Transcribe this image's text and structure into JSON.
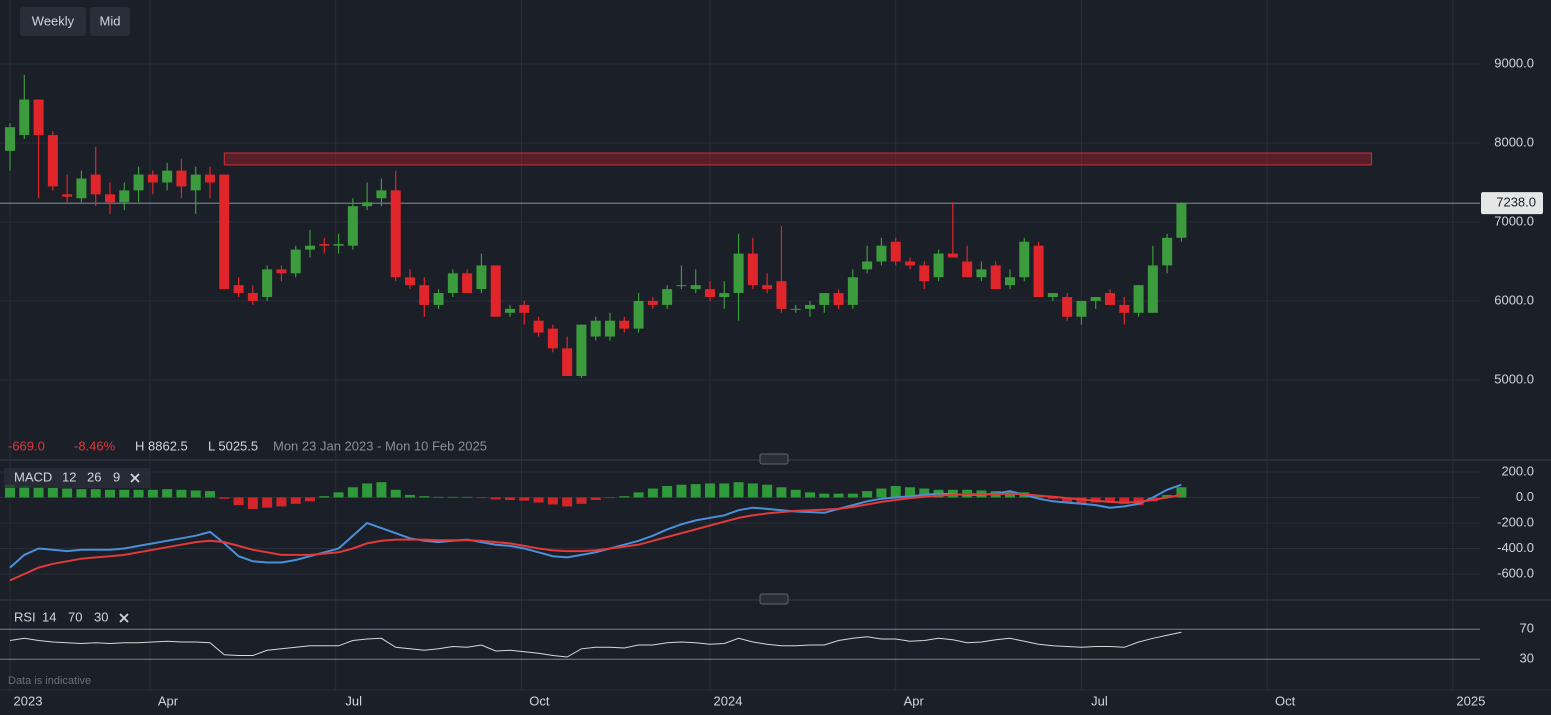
{
  "toolbar": [
    "Weekly",
    "Mid"
  ],
  "footer": "Data is indicative",
  "stats": {
    "change": "-669.0",
    "change_pct": "-8.46%",
    "high": "H 8862.5",
    "low": "L 5025.5",
    "range": "Mon 23 Jan 2023 - Mon 10 Feb 2025"
  },
  "chart_data": [
    {
      "type": "candlestick",
      "up_color": "#3c9b3c",
      "down_color": "#e0262b",
      "grid": true,
      "xlim": [
        -0.7,
        102.9
      ],
      "xticks": [
        {
          "value": 0,
          "label": "2023"
        },
        {
          "value": 9.8,
          "label": "Apr"
        },
        {
          "value": 22.8,
          "label": "Jul"
        },
        {
          "value": 35.8,
          "label": "Oct"
        },
        {
          "value": 49,
          "label": "2024"
        },
        {
          "value": 62,
          "label": "Apr"
        },
        {
          "value": 75,
          "label": "Jul"
        },
        {
          "value": 88,
          "label": "Oct"
        },
        {
          "value": 101,
          "label": "2025"
        }
      ],
      "ylim": [
        4050,
        9810
      ],
      "yticks": [
        {
          "value": 5000,
          "label": "5000.0"
        },
        {
          "value": 6000,
          "label": "6000.0"
        },
        {
          "value": 7000,
          "label": "7000.0"
        },
        {
          "value": 8000,
          "label": "8000.0"
        },
        {
          "value": 9000,
          "label": "9000.0"
        }
      ],
      "last_price": {
        "value": 7238,
        "label": "7238.0"
      },
      "zone": {
        "x": [
          15,
          95.3
        ],
        "y": [
          7722,
          7873
        ],
        "color": "#a3202a"
      },
      "open": [
        7900,
        8100,
        8550,
        8100,
        7350,
        7300,
        7600,
        7350,
        7250,
        7400,
        7600,
        7500,
        7650,
        7400,
        7600,
        7600,
        6200,
        6100,
        6050,
        6400,
        6350,
        6650,
        6720,
        6700,
        6700,
        7200,
        7300,
        7400,
        6300,
        6200,
        5950,
        6100,
        6350,
        6150,
        6450,
        5850,
        5950,
        5750,
        5650,
        5400,
        5050,
        5550,
        5550,
        5750,
        5650,
        6000,
        5950,
        6200,
        6150,
        6150,
        6050,
        6100,
        6600,
        6200,
        6250,
        5900,
        5900,
        5950,
        6100,
        5950,
        6400,
        6500,
        6750,
        6500,
        6450,
        6300,
        6600,
        6500,
        6300,
        6450,
        6200,
        6300,
        6700,
        6050,
        6050,
        5800,
        6000,
        6100,
        5950,
        5850,
        5850,
        6450,
        6800
      ],
      "high": [
        8250,
        8862.5,
        8550,
        8150,
        7600,
        7650,
        7950,
        7500,
        7500,
        7700,
        7650,
        7750,
        7800,
        7700,
        7700,
        7600,
        6300,
        6200,
        6450,
        6450,
        6700,
        6900,
        6800,
        6850,
        7300,
        7500,
        7550,
        7650,
        6400,
        6300,
        6150,
        6400,
        6400,
        6600,
        6450,
        5950,
        6000,
        5800,
        5700,
        5550,
        5700,
        5800,
        5850,
        5800,
        6100,
        6050,
        6200,
        6450,
        6400,
        6250,
        6250,
        6850,
        6800,
        6350,
        6950,
        5950,
        6000,
        6100,
        6150,
        6400,
        6700,
        6800,
        6800,
        6550,
        6500,
        6650,
        7250,
        6700,
        6500,
        6500,
        6400,
        6800,
        6750,
        6100,
        6100,
        6000,
        6050,
        6150,
        6050,
        6200,
        6700,
        6850,
        7250
      ],
      "low": [
        7650,
        8050,
        7300,
        7400,
        7250,
        7250,
        7200,
        7100,
        7150,
        7250,
        7350,
        7400,
        7300,
        7100,
        7300,
        6150,
        6050,
        5950,
        6000,
        6250,
        6300,
        6550,
        6600,
        6600,
        6650,
        7150,
        7200,
        6250,
        6150,
        5800,
        5900,
        6050,
        6100,
        6100,
        5800,
        5800,
        5700,
        5550,
        5350,
        5050,
        5025.5,
        5500,
        5500,
        5600,
        5600,
        5900,
        5900,
        6150,
        6100,
        6000,
        5900,
        5750,
        6150,
        6100,
        5850,
        5850,
        5800,
        5850,
        5900,
        5900,
        6350,
        6450,
        6450,
        6400,
        6150,
        6250,
        6550,
        6300,
        6250,
        6150,
        6150,
        6250,
        6050,
        6000,
        5750,
        5700,
        5900,
        5950,
        5700,
        5800,
        5850,
        6350,
        6750
      ],
      "close": [
        8200,
        8550,
        8100,
        7450,
        7320,
        7550,
        7350,
        7250,
        7400,
        7600,
        7500,
        7650,
        7450,
        7600,
        7500,
        6150,
        6100,
        6000,
        6400,
        6350,
        6650,
        6700,
        6700,
        6720,
        7200,
        7250,
        7400,
        6300,
        6200,
        5950,
        6100,
        6350,
        6100,
        6450,
        5800,
        5900,
        5850,
        5600,
        5400,
        5050,
        5700,
        5750,
        5750,
        5650,
        6000,
        5950,
        6150,
        6200,
        6200,
        6050,
        6100,
        6600,
        6200,
        6150,
        5900,
        5900,
        5950,
        6100,
        5950,
        6300,
        6500,
        6700,
        6500,
        6450,
        6250,
        6600,
        6550,
        6300,
        6400,
        6150,
        6300,
        6750,
        6050,
        6100,
        5800,
        6000,
        6050,
        5950,
        5850,
        6200,
        6450,
        6800,
        7238
      ]
    },
    {
      "type": "macd",
      "label": "MACD",
      "params": [
        12,
        26,
        9
      ],
      "ylim": [
        -788,
        278
      ],
      "yticks": [
        {
          "value": 200,
          "label": "200.0"
        },
        {
          "value": 0,
          "label": "0.0"
        },
        {
          "value": -200,
          "label": "-200.0"
        },
        {
          "value": -400,
          "label": "-400.0"
        },
        {
          "value": -600,
          "label": "-600.0"
        }
      ],
      "histogram": {
        "up_color": "#2f9a3a",
        "down_color": "#d3262b",
        "values": [
          100,
          90,
          80,
          75,
          70,
          65,
          65,
          60,
          60,
          60,
          60,
          65,
          60,
          55,
          50,
          -10,
          -60,
          -90,
          -80,
          -70,
          -50,
          -30,
          10,
          40,
          80,
          110,
          120,
          60,
          20,
          10,
          5,
          5,
          5,
          -5,
          -15,
          -20,
          -25,
          -40,
          -55,
          -70,
          -50,
          -20,
          -5,
          10,
          40,
          70,
          90,
          100,
          105,
          110,
          110,
          120,
          110,
          100,
          80,
          60,
          40,
          30,
          30,
          30,
          50,
          70,
          90,
          80,
          70,
          60,
          60,
          60,
          55,
          50,
          45,
          40,
          20,
          -10,
          -40,
          -50,
          -40,
          -30,
          -50,
          -60,
          -30,
          20,
          80
        ]
      },
      "series": [
        {
          "color": "#4a90d9",
          "values": [
            -550,
            -450,
            -400,
            -410,
            -420,
            -410,
            -410,
            -410,
            -400,
            -380,
            -360,
            -340,
            -320,
            -300,
            -270,
            -360,
            -460,
            -500,
            -510,
            -510,
            -490,
            -460,
            -430,
            -400,
            -300,
            -200,
            -240,
            -280,
            -320,
            -340,
            -350,
            -340,
            -330,
            -350,
            -370,
            -380,
            -400,
            -430,
            -460,
            -470,
            -450,
            -430,
            -400,
            -370,
            -340,
            -300,
            -250,
            -210,
            -180,
            -160,
            -140,
            -100,
            -80,
            -90,
            -100,
            -110,
            -115,
            -120,
            -90,
            -60,
            -30,
            -10,
            0,
            10,
            20,
            30,
            25,
            20,
            20,
            30,
            50,
            20,
            -10,
            -30,
            -40,
            -50,
            -60,
            -80,
            -70,
            -50,
            0,
            60,
            100
          ]
        },
        {
          "color": "#e03a3a",
          "values": [
            -650,
            -600,
            -550,
            -520,
            -500,
            -480,
            -470,
            -460,
            -450,
            -430,
            -410,
            -390,
            -370,
            -350,
            -340,
            -350,
            -380,
            -410,
            -430,
            -450,
            -450,
            -450,
            -440,
            -430,
            -400,
            -360,
            -340,
            -330,
            -330,
            -330,
            -335,
            -335,
            -335,
            -340,
            -350,
            -360,
            -380,
            -400,
            -415,
            -420,
            -420,
            -415,
            -400,
            -385,
            -370,
            -340,
            -310,
            -280,
            -250,
            -220,
            -190,
            -160,
            -140,
            -125,
            -115,
            -105,
            -100,
            -95,
            -90,
            -75,
            -55,
            -35,
            -20,
            -5,
            5,
            15,
            20,
            25,
            25,
            25,
            30,
            25,
            15,
            5,
            -5,
            -15,
            -25,
            -35,
            -40,
            -35,
            -20,
            0,
            20
          ]
        }
      ]
    },
    {
      "type": "line",
      "label": "RSI",
      "params": [
        14,
        70,
        30
      ],
      "ylim": [
        -11,
        101
      ],
      "yticks": [
        70,
        30
      ],
      "series": [
        {
          "color": "#d8d8d8",
          "values": [
            55,
            58,
            55,
            53,
            52,
            51,
            52,
            51,
            52,
            52,
            53,
            54,
            53,
            53,
            52,
            36,
            35,
            35,
            42,
            44,
            46,
            48,
            48,
            48,
            55,
            57,
            58,
            46,
            44,
            42,
            44,
            47,
            46,
            49,
            41,
            42,
            40,
            38,
            35,
            33,
            44,
            46,
            46,
            45,
            49,
            49,
            52,
            53,
            52,
            50,
            51,
            58,
            53,
            50,
            48,
            48,
            49,
            49,
            55,
            58,
            60,
            57,
            57,
            54,
            55,
            58,
            56,
            52,
            53,
            56,
            58,
            54,
            50,
            48,
            47,
            46,
            47,
            47,
            46,
            53,
            58,
            62,
            66
          ]
        }
      ]
    }
  ]
}
